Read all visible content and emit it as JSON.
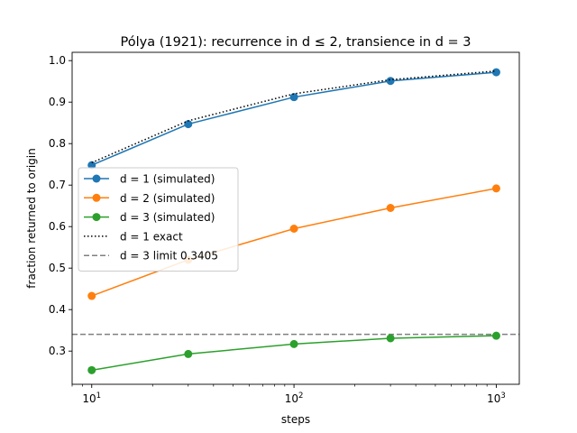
{
  "chart_data": {
    "type": "line",
    "title": "Pólya (1921): recurrence in d ≤ 2, transience in d = 3",
    "xlabel": "steps",
    "ylabel": "fraction returned to origin",
    "x_scale": "log",
    "xlim": [
      8,
      1300
    ],
    "ylim": [
      0.22,
      1.02
    ],
    "x_major_ticks": [
      10,
      100,
      1000
    ],
    "x_major_tick_labels": [
      "10^1",
      "10^2",
      "10^3"
    ],
    "y_ticks": [
      0.3,
      0.4,
      0.5,
      0.6,
      0.7,
      0.8,
      0.9,
      1.0
    ],
    "y_tick_labels": [
      "0.3",
      "0.4",
      "0.5",
      "0.6",
      "0.7",
      "0.8",
      "0.9",
      "1.0"
    ],
    "grid": false,
    "legend_position": "center-left",
    "x": [
      10,
      30,
      100,
      300,
      1000
    ],
    "series": [
      {
        "name": "d = 1 (simulated)",
        "color": "#1f77b4",
        "style": "solid-marker",
        "values": [
          0.748,
          0.847,
          0.912,
          0.951,
          0.972
        ]
      },
      {
        "name": "d = 2 (simulated)",
        "color": "#ff7f0e",
        "style": "solid-marker",
        "values": [
          0.433,
          0.52,
          0.595,
          0.645,
          0.692
        ]
      },
      {
        "name": "d = 3 (simulated)",
        "color": "#2ca02c",
        "style": "solid-marker",
        "values": [
          0.254,
          0.293,
          0.317,
          0.331,
          0.337
        ]
      },
      {
        "name": "d = 1 exact",
        "color": "#000000",
        "style": "dotted",
        "values": [
          0.754,
          0.855,
          0.92,
          0.954,
          0.975
        ]
      }
    ],
    "reference_line": {
      "name": "d = 3 limit 0.3405",
      "color": "#808080",
      "style": "dashed",
      "y": 0.3405
    }
  }
}
